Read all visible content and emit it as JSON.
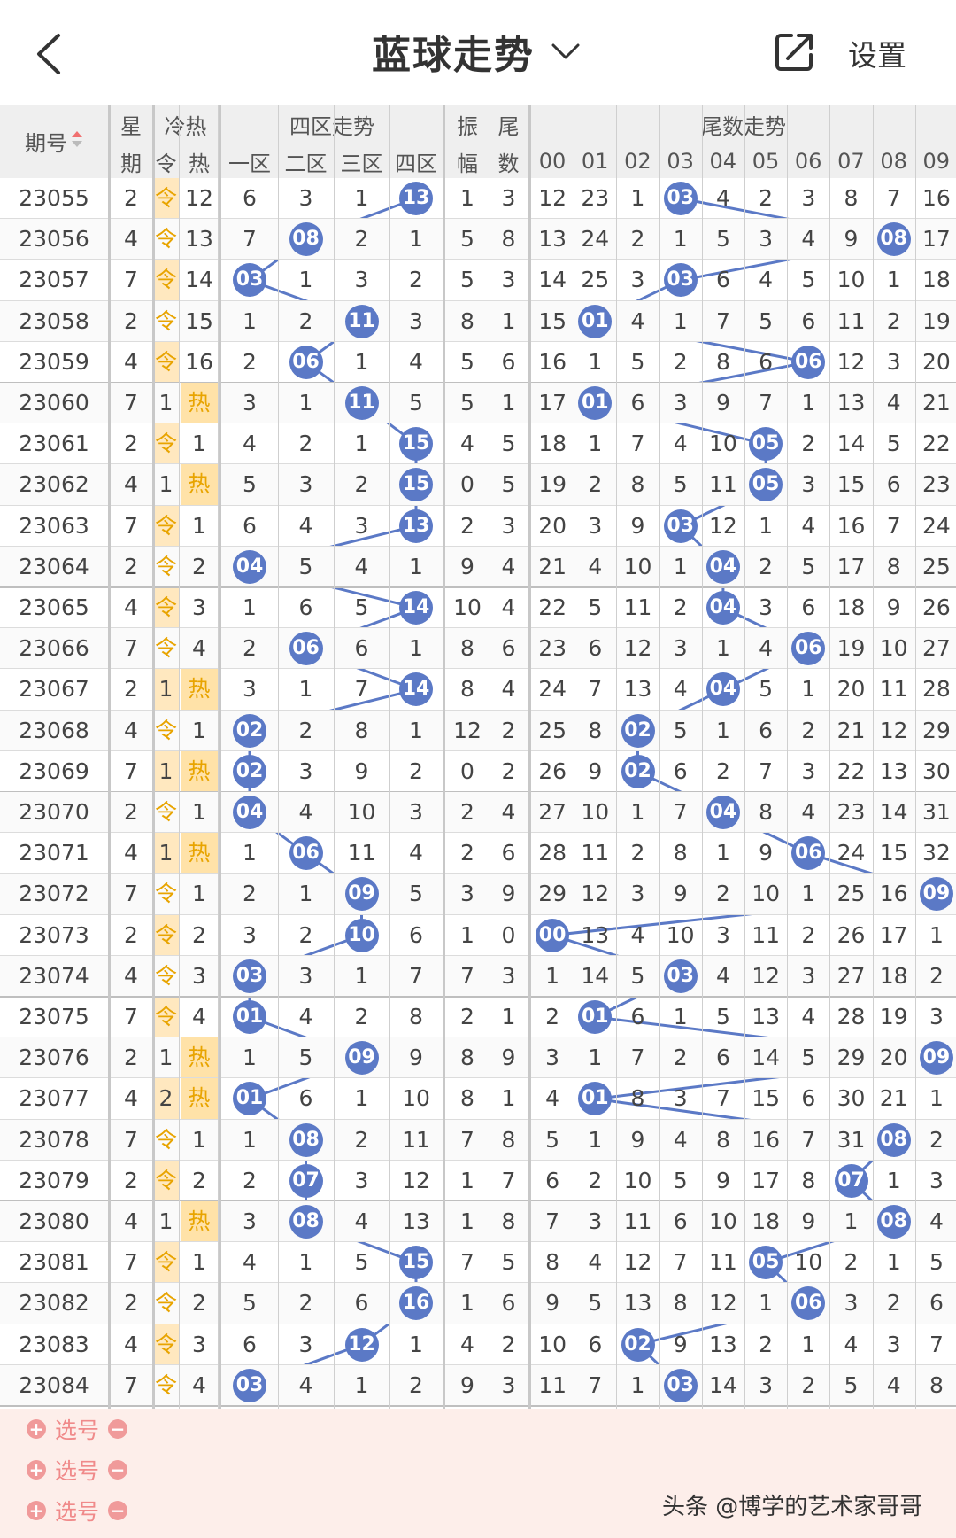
{
  "header": {
    "title": "蓝球走势",
    "settings_label": "设置",
    "back_icon": "chevron-left-icon",
    "dropdown_icon": "chevron-down-icon",
    "share_icon": "share-icon"
  },
  "columns": {
    "period_label": "期号",
    "week_top": "星",
    "week_bottom": "期",
    "coldhot_top": "冷热",
    "cold_label": "令",
    "hot_label": "热",
    "four_zone_title": "四区走势",
    "zones": [
      "一区",
      "二区",
      "三区",
      "四区"
    ],
    "amplitude_top": "振",
    "amplitude_bottom": "幅",
    "tail_top": "尾",
    "tail_bottom": "数",
    "tail_trend_title": "尾数走势",
    "tails": [
      "00",
      "01",
      "02",
      "03",
      "04",
      "05",
      "06",
      "07",
      "08",
      "09"
    ]
  },
  "colors": {
    "ball": "#5b79c6",
    "cold_text": "#e8a400",
    "hot_bg": "#ffe2a8",
    "pick_bg": "#fdeeea",
    "header_bg": "#efefef"
  },
  "rows": [
    {
      "period": "23055",
      "week": "2",
      "cold": "令",
      "hot": "12",
      "hot_flag": false,
      "zones": [
        "6",
        "3",
        "1",
        "13"
      ],
      "zone_hit": 3,
      "amp": "1",
      "tail": "3",
      "tail_cells": [
        "12",
        "23",
        "1",
        "03",
        "4",
        "2",
        "3",
        "8",
        "7",
        "16"
      ],
      "tail_hit": 3
    },
    {
      "period": "23056",
      "week": "4",
      "cold": "令",
      "hot": "13",
      "hot_flag": false,
      "zones": [
        "7",
        "08",
        "2",
        "1"
      ],
      "zone_hit": 1,
      "amp": "5",
      "tail": "8",
      "tail_cells": [
        "13",
        "24",
        "2",
        "1",
        "5",
        "3",
        "4",
        "9",
        "08",
        "17"
      ],
      "tail_hit": 8
    },
    {
      "period": "23057",
      "week": "7",
      "cold": "令",
      "hot": "14",
      "hot_flag": false,
      "zones": [
        "03",
        "1",
        "3",
        "2"
      ],
      "zone_hit": 0,
      "amp": "5",
      "tail": "3",
      "tail_cells": [
        "14",
        "25",
        "3",
        "03",
        "6",
        "4",
        "5",
        "10",
        "1",
        "18"
      ],
      "tail_hit": 3
    },
    {
      "period": "23058",
      "week": "2",
      "cold": "令",
      "hot": "15",
      "hot_flag": false,
      "zones": [
        "1",
        "2",
        "11",
        "3"
      ],
      "zone_hit": 2,
      "amp": "8",
      "tail": "1",
      "tail_cells": [
        "15",
        "01",
        "4",
        "1",
        "7",
        "5",
        "6",
        "11",
        "2",
        "19"
      ],
      "tail_hit": 1
    },
    {
      "period": "23059",
      "week": "4",
      "cold": "令",
      "hot": "16",
      "hot_flag": false,
      "zones": [
        "2",
        "06",
        "1",
        "4"
      ],
      "zone_hit": 1,
      "amp": "5",
      "tail": "6",
      "tail_cells": [
        "16",
        "1",
        "5",
        "2",
        "8",
        "6",
        "06",
        "12",
        "3",
        "20"
      ],
      "tail_hit": 6
    },
    {
      "period": "23060",
      "week": "7",
      "cold": "1",
      "hot": "热",
      "hot_flag": true,
      "zones": [
        "3",
        "1",
        "11",
        "5"
      ],
      "zone_hit": 2,
      "amp": "5",
      "tail": "1",
      "tail_cells": [
        "17",
        "01",
        "6",
        "3",
        "9",
        "7",
        "1",
        "13",
        "4",
        "21"
      ],
      "tail_hit": 1
    },
    {
      "period": "23061",
      "week": "2",
      "cold": "令",
      "hot": "1",
      "hot_flag": false,
      "zones": [
        "4",
        "2",
        "1",
        "15"
      ],
      "zone_hit": 3,
      "amp": "4",
      "tail": "5",
      "tail_cells": [
        "18",
        "1",
        "7",
        "4",
        "10",
        "05",
        "2",
        "14",
        "5",
        "22"
      ],
      "tail_hit": 5
    },
    {
      "period": "23062",
      "week": "4",
      "cold": "1",
      "hot": "热",
      "hot_flag": true,
      "zones": [
        "5",
        "3",
        "2",
        "15"
      ],
      "zone_hit": 3,
      "amp": "0",
      "tail": "5",
      "tail_cells": [
        "19",
        "2",
        "8",
        "5",
        "11",
        "05",
        "3",
        "15",
        "6",
        "23"
      ],
      "tail_hit": 5
    },
    {
      "period": "23063",
      "week": "7",
      "cold": "令",
      "hot": "1",
      "hot_flag": false,
      "zones": [
        "6",
        "4",
        "3",
        "13"
      ],
      "zone_hit": 3,
      "amp": "2",
      "tail": "3",
      "tail_cells": [
        "20",
        "3",
        "9",
        "03",
        "12",
        "1",
        "4",
        "16",
        "7",
        "24"
      ],
      "tail_hit": 3
    },
    {
      "period": "23064",
      "week": "2",
      "cold": "令",
      "hot": "2",
      "hot_flag": false,
      "zones": [
        "04",
        "5",
        "4",
        "1"
      ],
      "zone_hit": 0,
      "amp": "9",
      "tail": "4",
      "tail_cells": [
        "21",
        "4",
        "10",
        "1",
        "04",
        "2",
        "5",
        "17",
        "8",
        "25"
      ],
      "tail_hit": 4
    },
    {
      "period": "23065",
      "week": "4",
      "cold": "令",
      "hot": "3",
      "hot_flag": false,
      "zones": [
        "1",
        "6",
        "5",
        "14"
      ],
      "zone_hit": 3,
      "amp": "10",
      "tail": "4",
      "tail_cells": [
        "22",
        "5",
        "11",
        "2",
        "04",
        "3",
        "6",
        "18",
        "9",
        "26"
      ],
      "tail_hit": 4
    },
    {
      "period": "23066",
      "week": "7",
      "cold": "令",
      "hot": "4",
      "hot_flag": false,
      "zones": [
        "2",
        "06",
        "6",
        "1"
      ],
      "zone_hit": 1,
      "amp": "8",
      "tail": "6",
      "tail_cells": [
        "23",
        "6",
        "12",
        "3",
        "1",
        "4",
        "06",
        "19",
        "10",
        "27"
      ],
      "tail_hit": 6
    },
    {
      "period": "23067",
      "week": "2",
      "cold": "1",
      "hot": "热",
      "hot_flag": true,
      "zones": [
        "3",
        "1",
        "7",
        "14"
      ],
      "zone_hit": 3,
      "amp": "8",
      "tail": "4",
      "tail_cells": [
        "24",
        "7",
        "13",
        "4",
        "04",
        "5",
        "1",
        "20",
        "11",
        "28"
      ],
      "tail_hit": 4
    },
    {
      "period": "23068",
      "week": "4",
      "cold": "令",
      "hot": "1",
      "hot_flag": false,
      "zones": [
        "02",
        "2",
        "8",
        "1"
      ],
      "zone_hit": 0,
      "amp": "12",
      "tail": "2",
      "tail_cells": [
        "25",
        "8",
        "02",
        "5",
        "1",
        "6",
        "2",
        "21",
        "12",
        "29"
      ],
      "tail_hit": 2
    },
    {
      "period": "23069",
      "week": "7",
      "cold": "1",
      "hot": "热",
      "hot_flag": true,
      "zones": [
        "02",
        "3",
        "9",
        "2"
      ],
      "zone_hit": 0,
      "amp": "0",
      "tail": "2",
      "tail_cells": [
        "26",
        "9",
        "02",
        "6",
        "2",
        "7",
        "3",
        "22",
        "13",
        "30"
      ],
      "tail_hit": 2
    },
    {
      "period": "23070",
      "week": "2",
      "cold": "令",
      "hot": "1",
      "hot_flag": false,
      "zones": [
        "04",
        "4",
        "10",
        "3"
      ],
      "zone_hit": 0,
      "amp": "2",
      "tail": "4",
      "tail_cells": [
        "27",
        "10",
        "1",
        "7",
        "04",
        "8",
        "4",
        "23",
        "14",
        "31"
      ],
      "tail_hit": 4
    },
    {
      "period": "23071",
      "week": "4",
      "cold": "1",
      "hot": "热",
      "hot_flag": true,
      "zones": [
        "1",
        "06",
        "11",
        "4"
      ],
      "zone_hit": 1,
      "amp": "2",
      "tail": "6",
      "tail_cells": [
        "28",
        "11",
        "2",
        "8",
        "1",
        "9",
        "06",
        "24",
        "15",
        "32"
      ],
      "tail_hit": 6
    },
    {
      "period": "23072",
      "week": "7",
      "cold": "令",
      "hot": "1",
      "hot_flag": false,
      "zones": [
        "2",
        "1",
        "09",
        "5"
      ],
      "zone_hit": 2,
      "amp": "3",
      "tail": "9",
      "tail_cells": [
        "29",
        "12",
        "3",
        "9",
        "2",
        "10",
        "1",
        "25",
        "16",
        "09"
      ],
      "tail_hit": 9
    },
    {
      "period": "23073",
      "week": "2",
      "cold": "令",
      "hot": "2",
      "hot_flag": false,
      "zones": [
        "3",
        "2",
        "10",
        "6"
      ],
      "zone_hit": 2,
      "amp": "1",
      "tail": "0",
      "tail_cells": [
        "00",
        "13",
        "4",
        "10",
        "3",
        "11",
        "2",
        "26",
        "17",
        "1"
      ],
      "tail_hit": 0
    },
    {
      "period": "23074",
      "week": "4",
      "cold": "令",
      "hot": "3",
      "hot_flag": false,
      "zones": [
        "03",
        "3",
        "1",
        "7"
      ],
      "zone_hit": 0,
      "amp": "7",
      "tail": "3",
      "tail_cells": [
        "1",
        "14",
        "5",
        "03",
        "4",
        "12",
        "3",
        "27",
        "18",
        "2"
      ],
      "tail_hit": 3
    },
    {
      "period": "23075",
      "week": "7",
      "cold": "令",
      "hot": "4",
      "hot_flag": false,
      "zones": [
        "01",
        "4",
        "2",
        "8"
      ],
      "zone_hit": 0,
      "amp": "2",
      "tail": "1",
      "tail_cells": [
        "2",
        "01",
        "6",
        "1",
        "5",
        "13",
        "4",
        "28",
        "19",
        "3"
      ],
      "tail_hit": 1
    },
    {
      "period": "23076",
      "week": "2",
      "cold": "1",
      "hot": "热",
      "hot_flag": true,
      "zones": [
        "1",
        "5",
        "09",
        "9"
      ],
      "zone_hit": 2,
      "amp": "8",
      "tail": "9",
      "tail_cells": [
        "3",
        "1",
        "7",
        "2",
        "6",
        "14",
        "5",
        "29",
        "20",
        "09"
      ],
      "tail_hit": 9
    },
    {
      "period": "23077",
      "week": "4",
      "cold": "2",
      "hot": "热",
      "hot_flag": true,
      "zones": [
        "01",
        "6",
        "1",
        "10"
      ],
      "zone_hit": 0,
      "amp": "8",
      "tail": "1",
      "tail_cells": [
        "4",
        "01",
        "8",
        "3",
        "7",
        "15",
        "6",
        "30",
        "21",
        "1"
      ],
      "tail_hit": 1
    },
    {
      "period": "23078",
      "week": "7",
      "cold": "令",
      "hot": "1",
      "hot_flag": false,
      "zones": [
        "1",
        "08",
        "2",
        "11"
      ],
      "zone_hit": 1,
      "amp": "7",
      "tail": "8",
      "tail_cells": [
        "5",
        "1",
        "9",
        "4",
        "8",
        "16",
        "7",
        "31",
        "08",
        "2"
      ],
      "tail_hit": 8
    },
    {
      "period": "23079",
      "week": "2",
      "cold": "令",
      "hot": "2",
      "hot_flag": false,
      "zones": [
        "2",
        "07",
        "3",
        "12"
      ],
      "zone_hit": 1,
      "amp": "1",
      "tail": "7",
      "tail_cells": [
        "6",
        "2",
        "10",
        "5",
        "9",
        "17",
        "8",
        "07",
        "1",
        "3"
      ],
      "tail_hit": 7
    },
    {
      "period": "23080",
      "week": "4",
      "cold": "1",
      "hot": "热",
      "hot_flag": true,
      "zones": [
        "3",
        "08",
        "4",
        "13"
      ],
      "zone_hit": 1,
      "amp": "1",
      "tail": "8",
      "tail_cells": [
        "7",
        "3",
        "11",
        "6",
        "10",
        "18",
        "9",
        "1",
        "08",
        "4"
      ],
      "tail_hit": 8
    },
    {
      "period": "23081",
      "week": "7",
      "cold": "令",
      "hot": "1",
      "hot_flag": false,
      "zones": [
        "4",
        "1",
        "5",
        "15"
      ],
      "zone_hit": 3,
      "amp": "7",
      "tail": "5",
      "tail_cells": [
        "8",
        "4",
        "12",
        "7",
        "11",
        "05",
        "10",
        "2",
        "1",
        "5"
      ],
      "tail_hit": 5
    },
    {
      "period": "23082",
      "week": "2",
      "cold": "令",
      "hot": "2",
      "hot_flag": false,
      "zones": [
        "5",
        "2",
        "6",
        "16"
      ],
      "zone_hit": 3,
      "amp": "1",
      "tail": "6",
      "tail_cells": [
        "9",
        "5",
        "13",
        "8",
        "12",
        "1",
        "06",
        "3",
        "2",
        "6"
      ],
      "tail_hit": 6
    },
    {
      "period": "23083",
      "week": "4",
      "cold": "令",
      "hot": "3",
      "hot_flag": false,
      "zones": [
        "6",
        "3",
        "12",
        "1"
      ],
      "zone_hit": 2,
      "amp": "4",
      "tail": "2",
      "tail_cells": [
        "10",
        "6",
        "02",
        "9",
        "13",
        "2",
        "1",
        "4",
        "3",
        "7"
      ],
      "tail_hit": 2
    },
    {
      "period": "23084",
      "week": "7",
      "cold": "令",
      "hot": "4",
      "hot_flag": false,
      "zones": [
        "03",
        "4",
        "1",
        "2"
      ],
      "zone_hit": 0,
      "amp": "9",
      "tail": "3",
      "tail_cells": [
        "11",
        "7",
        "1",
        "03",
        "14",
        "3",
        "2",
        "5",
        "4",
        "8"
      ],
      "tail_hit": 3
    }
  ],
  "pick_rows": [
    {
      "label": "选号"
    },
    {
      "label": "选号"
    },
    {
      "label": "选号"
    }
  ],
  "watermark": "头条 @博学的艺术家哥哥"
}
